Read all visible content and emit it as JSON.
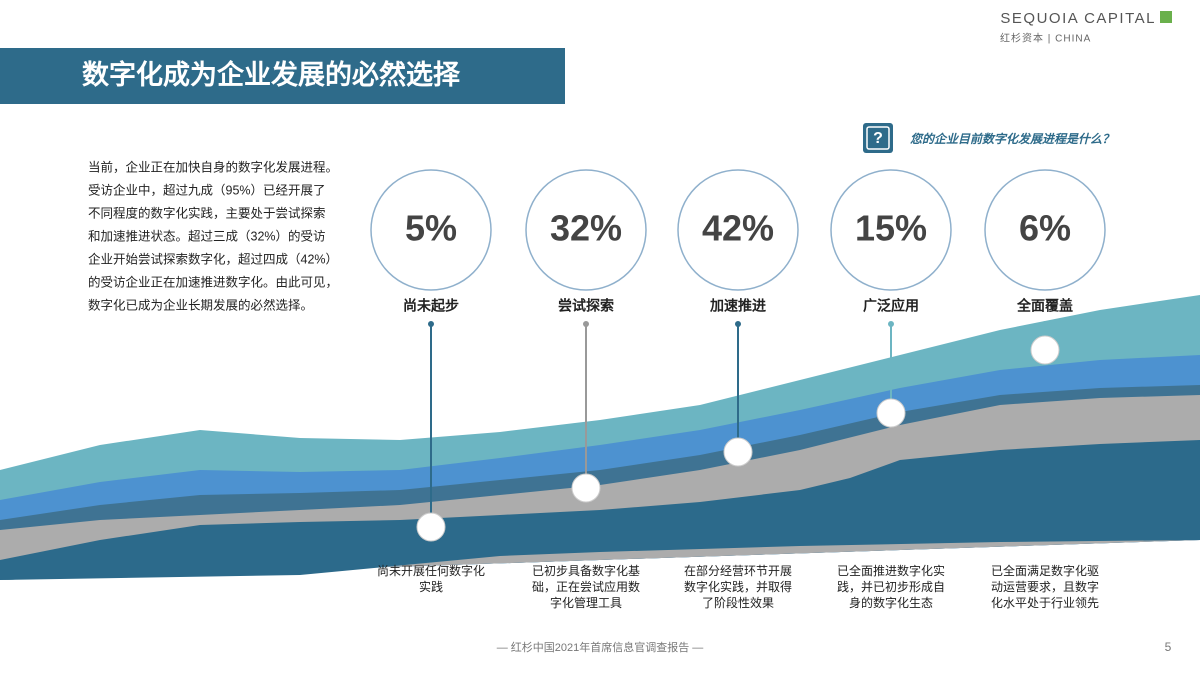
{
  "header": {
    "title": "数字化成为企业发展的必然选择",
    "brand": "SEQUOIA CAPITAL",
    "brand_sub": "红杉资本 | CHINA"
  },
  "intro": {
    "lines": [
      "当前，企业正在加快自身的数字化发展进程。",
      "受访企业中，超过九成（95%）已经开展了",
      "不同程度的数字化实践，主要处于尝试探索",
      "和加速推进状态。超过三成（32%）的受访",
      "企业开始尝试探索数字化，超过四成（42%）",
      "的受访企业正在加速推进数字化。由此可见，",
      "数字化已成为企业长期发展的必然选择。"
    ]
  },
  "question": {
    "icon": "?",
    "text": "您的企业目前数字化发展进程是什么？"
  },
  "stages": [
    {
      "percent": "5%",
      "label": "尚未起步",
      "description": [
        "尚未开展任何数字化",
        "实践"
      ]
    },
    {
      "percent": "32%",
      "label": "尝试探索",
      "description": [
        "已初步具备数字化基",
        "础，正在尝试应用数",
        "字化管理工具"
      ]
    },
    {
      "percent": "42%",
      "label": "加速推进",
      "description": [
        "在部分经营环节开展",
        "数字化实践，并取得",
        "了阶段性效果"
      ]
    },
    {
      "percent": "15%",
      "label": "广泛应用",
      "description": [
        "已全面推进数字化实",
        "践，并已初步形成自",
        "身的数字化生态"
      ]
    },
    {
      "percent": "6%",
      "label": "全面覆盖",
      "description": [
        "已全面满足数字化驱",
        "动运营要求，且数字",
        "化水平处于行业领先"
      ]
    }
  ],
  "footer": {
    "source": "— 红杉中国2021年首席信息官调查报告 —",
    "page": "5"
  }
}
